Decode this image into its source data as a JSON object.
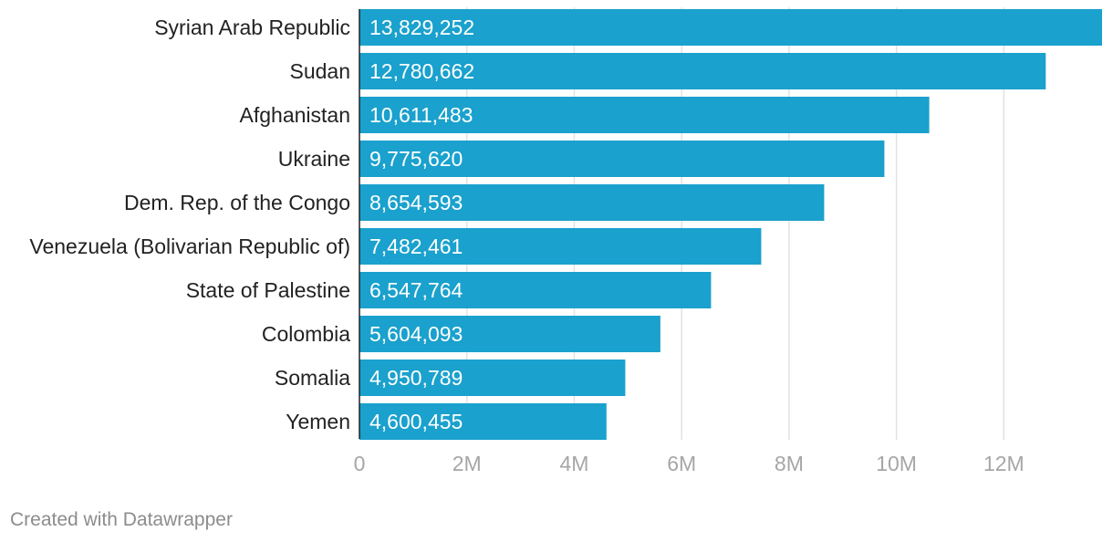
{
  "chart_data": {
    "type": "bar",
    "orientation": "horizontal",
    "title": "",
    "xlabel": "",
    "ylabel": "",
    "categories": [
      "Syrian Arab Republic",
      "Sudan",
      "Afghanistan",
      "Ukraine",
      "Dem. Rep. of the Congo",
      "Venezuela (Bolivarian Republic of)",
      "State of Palestine",
      "Colombia",
      "Somalia",
      "Yemen"
    ],
    "values": [
      13829252,
      12780662,
      10611483,
      9775620,
      8654593,
      7482461,
      6547764,
      5604093,
      4950789,
      4600455
    ],
    "value_labels": [
      "13,829,252",
      "12,780,662",
      "10,611,483",
      "9,775,620",
      "8,654,593",
      "7,482,461",
      "6,547,764",
      "5,604,093",
      "4,950,789",
      "4,600,455"
    ],
    "xlim": [
      0,
      13829252
    ],
    "x_ticks": [
      0,
      2000000,
      4000000,
      6000000,
      8000000,
      10000000,
      12000000
    ],
    "x_tick_labels": [
      "0",
      "2M",
      "4M",
      "6M",
      "8M",
      "10M",
      "12M"
    ],
    "grid": true,
    "bar_color": "#1aa1cd"
  },
  "footer": {
    "credit": "Created with Datawrapper"
  }
}
